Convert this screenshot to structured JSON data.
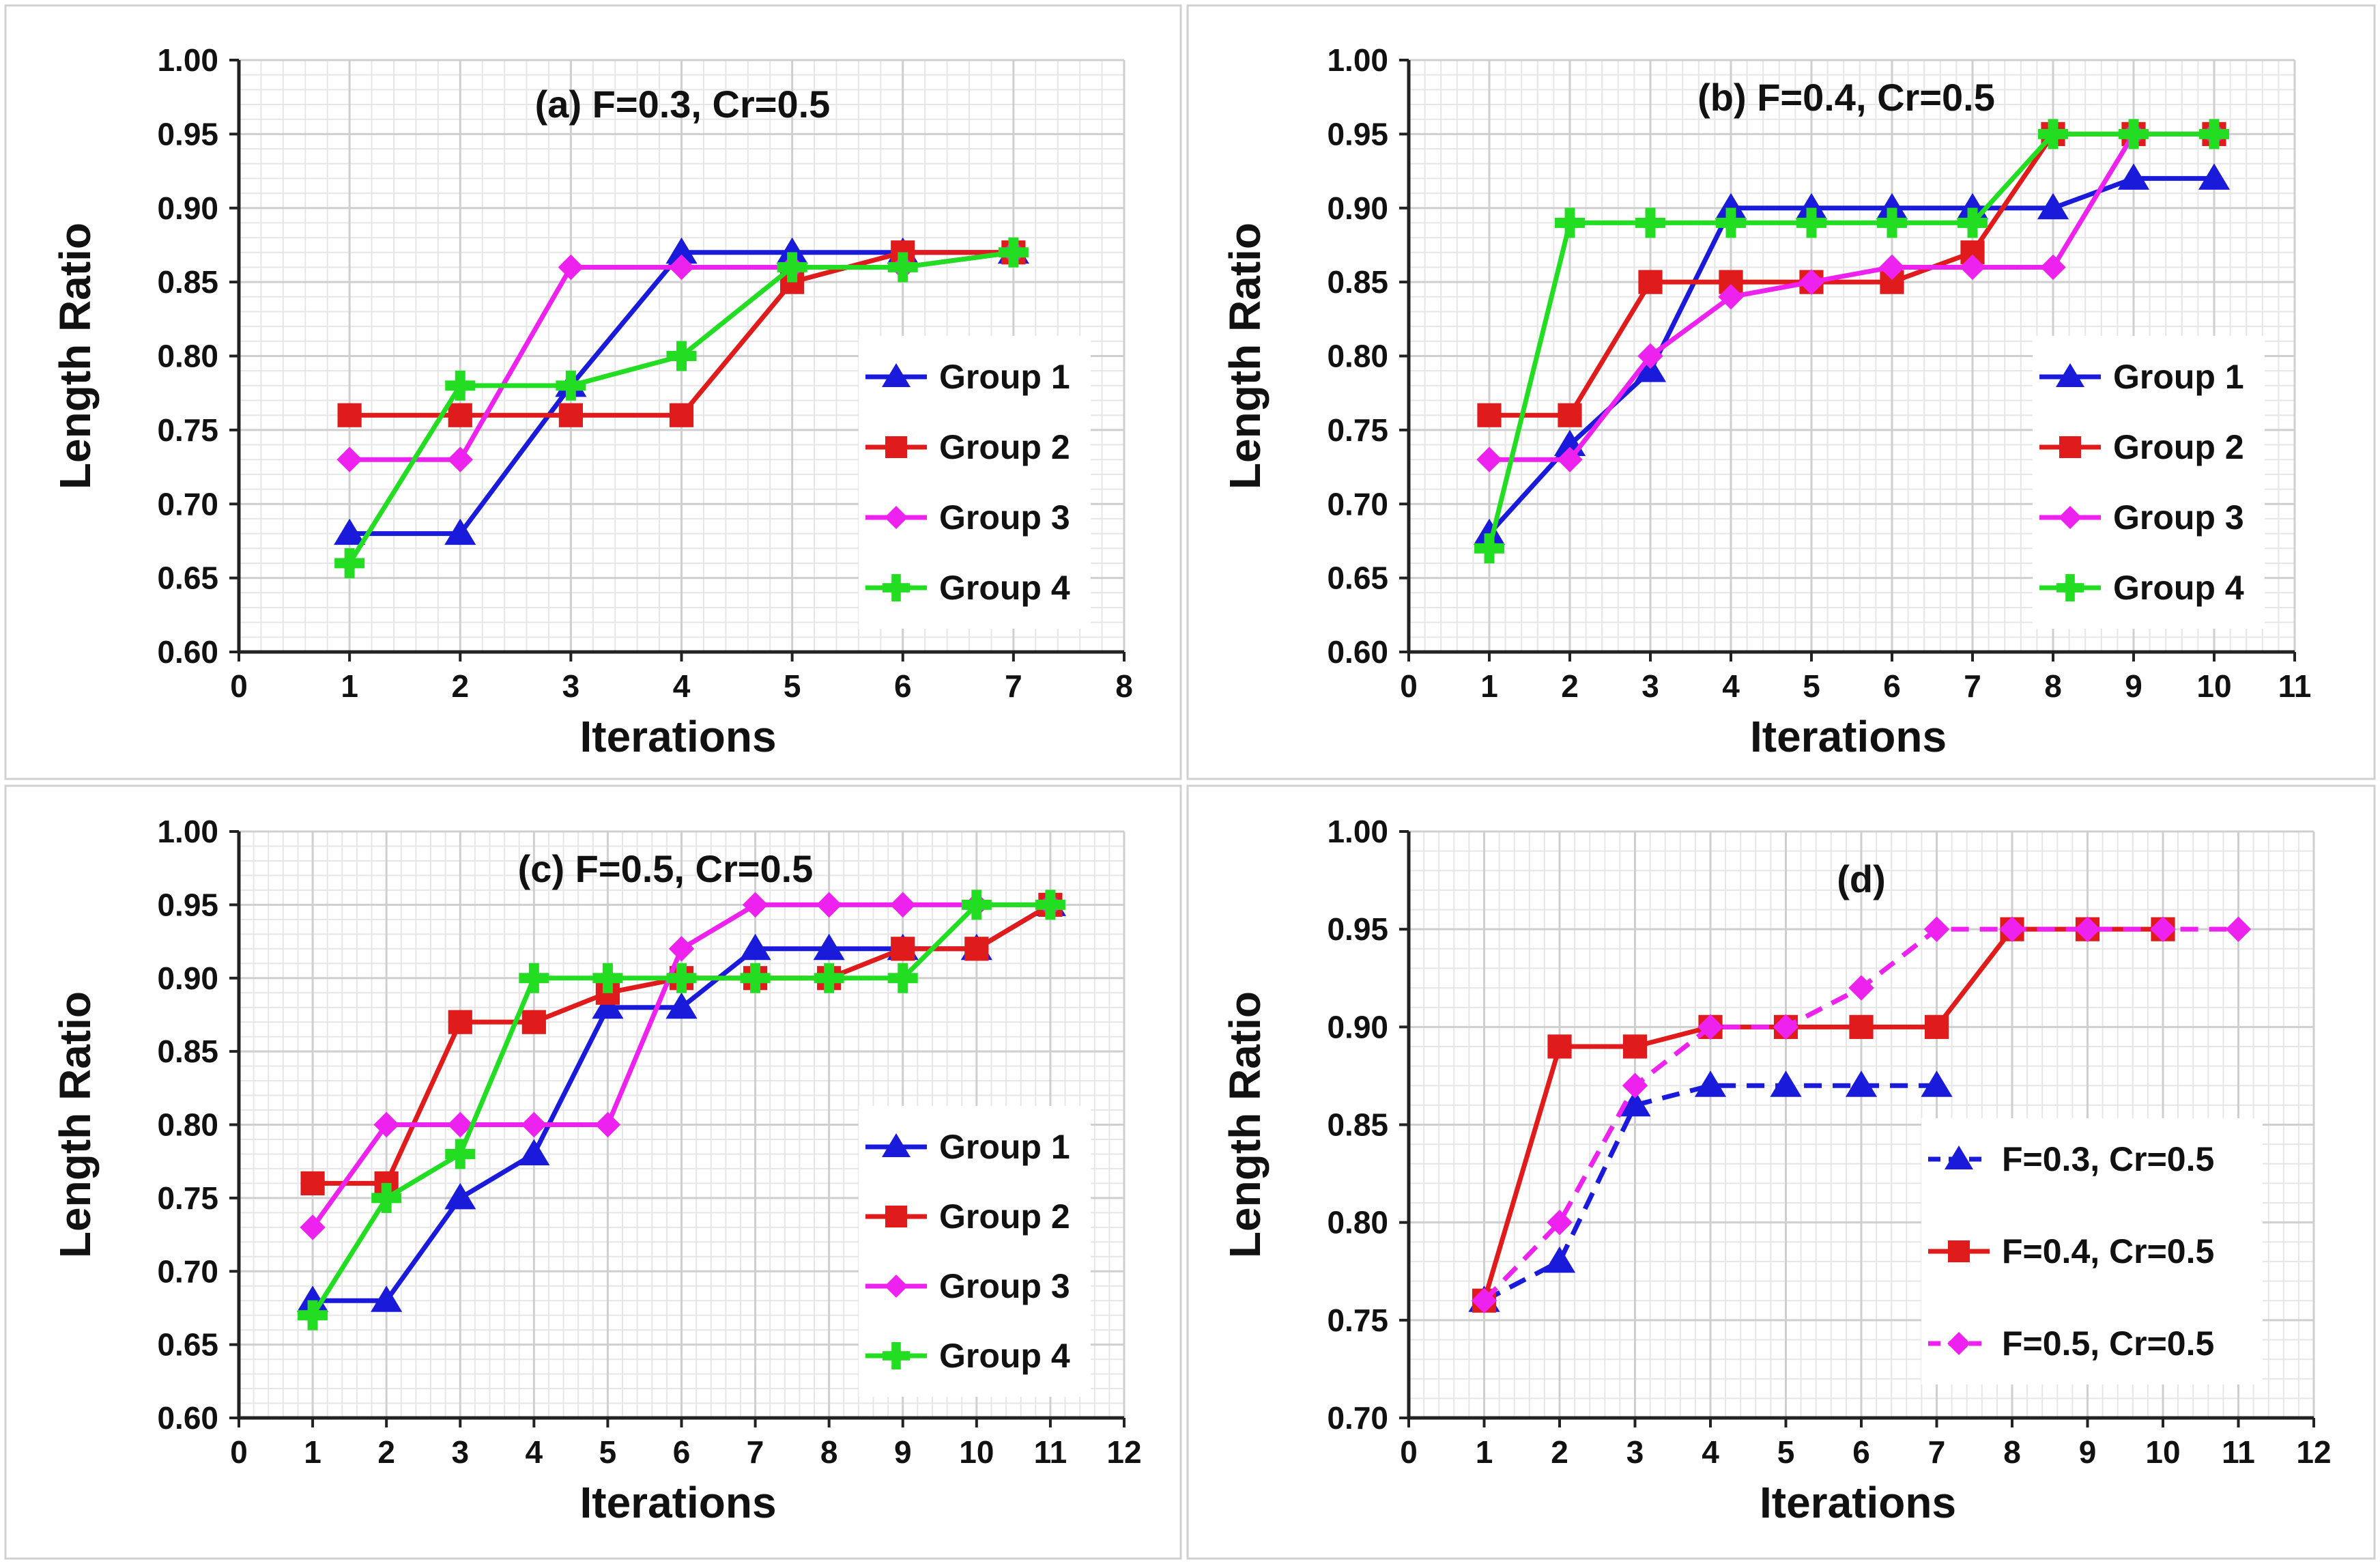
{
  "chart_data": [
    {
      "type": "line",
      "title": "(a) F=0.3, Cr=0.5",
      "xlabel": "Iterations",
      "ylabel": "Length Ratio",
      "xlim": [
        0,
        8
      ],
      "ylim": [
        0.6,
        1.0
      ],
      "xticks": [
        "0",
        "1",
        "2",
        "3",
        "4",
        "5",
        "6",
        "7",
        "8"
      ],
      "yticks": [
        "0.60",
        "0.65",
        "0.70",
        "0.75",
        "0.80",
        "0.85",
        "0.90",
        "0.95",
        "1.00"
      ],
      "legend_position": "center-right",
      "series": [
        {
          "name": "Group 1",
          "color": "#1a1adb",
          "marker": "triangle",
          "dash": "solid",
          "x": [
            1,
            2,
            3,
            4,
            5,
            6,
            7
          ],
          "values": [
            0.68,
            0.68,
            0.78,
            0.87,
            0.87,
            0.87,
            0.87
          ]
        },
        {
          "name": "Group 2",
          "color": "#e01b1b",
          "marker": "square",
          "dash": "solid",
          "x": [
            1,
            2,
            3,
            4,
            5,
            6,
            7
          ],
          "values": [
            0.76,
            0.76,
            0.76,
            0.76,
            0.85,
            0.87,
            0.87
          ]
        },
        {
          "name": "Group 3",
          "color": "#ee22ee",
          "marker": "diamond",
          "dash": "solid",
          "x": [
            1,
            2,
            3,
            4,
            5,
            6,
            7
          ],
          "values": [
            0.73,
            0.73,
            0.86,
            0.86,
            0.86,
            0.86,
            0.87
          ]
        },
        {
          "name": "Group 4",
          "color": "#22dd22",
          "marker": "plus",
          "dash": "solid",
          "x": [
            1,
            2,
            3,
            4,
            5,
            6,
            7
          ],
          "values": [
            0.66,
            0.78,
            0.78,
            0.8,
            0.86,
            0.86,
            0.87
          ]
        }
      ]
    },
    {
      "type": "line",
      "title": "(b) F=0.4, Cr=0.5",
      "xlabel": "Iterations",
      "ylabel": "Length Ratio",
      "xlim": [
        0,
        11
      ],
      "ylim": [
        0.6,
        1.0
      ],
      "xticks": [
        "0",
        "1",
        "2",
        "3",
        "4",
        "5",
        "6",
        "7",
        "8",
        "9",
        "10",
        "11"
      ],
      "yticks": [
        "0.60",
        "0.65",
        "0.70",
        "0.75",
        "0.80",
        "0.85",
        "0.90",
        "0.95",
        "1.00"
      ],
      "legend_position": "center-right",
      "series": [
        {
          "name": "Group 1",
          "color": "#1a1adb",
          "marker": "triangle",
          "dash": "solid",
          "x": [
            1,
            2,
            3,
            4,
            5,
            6,
            7,
            8,
            9,
            10
          ],
          "values": [
            0.68,
            0.74,
            0.79,
            0.9,
            0.9,
            0.9,
            0.9,
            0.9,
            0.92,
            0.92
          ]
        },
        {
          "name": "Group 2",
          "color": "#e01b1b",
          "marker": "square",
          "dash": "solid",
          "x": [
            1,
            2,
            3,
            4,
            5,
            6,
            7,
            8,
            9,
            10
          ],
          "values": [
            0.76,
            0.76,
            0.85,
            0.85,
            0.85,
            0.85,
            0.87,
            0.95,
            0.95,
            0.95
          ]
        },
        {
          "name": "Group 3",
          "color": "#ee22ee",
          "marker": "diamond",
          "dash": "solid",
          "x": [
            1,
            2,
            3,
            4,
            5,
            6,
            7,
            8,
            9,
            10
          ],
          "values": [
            0.73,
            0.73,
            0.8,
            0.84,
            0.85,
            0.86,
            0.86,
            0.86,
            0.95,
            0.95
          ]
        },
        {
          "name": "Group 4",
          "color": "#22dd22",
          "marker": "plus",
          "dash": "solid",
          "x": [
            1,
            2,
            3,
            4,
            5,
            6,
            7,
            8,
            9,
            10
          ],
          "values": [
            0.67,
            0.89,
            0.89,
            0.89,
            0.89,
            0.89,
            0.89,
            0.95,
            0.95,
            0.95
          ]
        }
      ]
    },
    {
      "type": "line",
      "title": "(c) F=0.5, Cr=0.5",
      "xlabel": "Iterations",
      "ylabel": "Length Ratio",
      "xlim": [
        0,
        12
      ],
      "ylim": [
        0.6,
        1.0
      ],
      "xticks": [
        "0",
        "1",
        "2",
        "3",
        "4",
        "5",
        "6",
        "7",
        "8",
        "9",
        "10",
        "11",
        "12"
      ],
      "yticks": [
        "0.60",
        "0.65",
        "0.70",
        "0.75",
        "0.80",
        "0.85",
        "0.90",
        "0.95",
        "1.00"
      ],
      "legend_position": "center-right",
      "series": [
        {
          "name": "Group 1",
          "color": "#1a1adb",
          "marker": "triangle",
          "dash": "solid",
          "x": [
            1,
            2,
            3,
            4,
            5,
            6,
            7,
            8,
            9,
            10,
            11
          ],
          "values": [
            0.68,
            0.68,
            0.75,
            0.78,
            0.88,
            0.88,
            0.92,
            0.92,
            0.92,
            0.92,
            0.95
          ]
        },
        {
          "name": "Group 2",
          "color": "#e01b1b",
          "marker": "square",
          "dash": "solid",
          "x": [
            1,
            2,
            3,
            4,
            5,
            6,
            7,
            8,
            9,
            10,
            11
          ],
          "values": [
            0.76,
            0.76,
            0.87,
            0.87,
            0.89,
            0.9,
            0.9,
            0.9,
            0.92,
            0.92,
            0.95
          ]
        },
        {
          "name": "Group 3",
          "color": "#ee22ee",
          "marker": "diamond",
          "dash": "solid",
          "x": [
            1,
            2,
            3,
            4,
            5,
            6,
            7,
            8,
            9,
            10,
            11
          ],
          "values": [
            0.73,
            0.8,
            0.8,
            0.8,
            0.8,
            0.92,
            0.95,
            0.95,
            0.95,
            0.95,
            0.95
          ]
        },
        {
          "name": "Group 4",
          "color": "#22dd22",
          "marker": "plus",
          "dash": "solid",
          "x": [
            1,
            2,
            3,
            4,
            5,
            6,
            7,
            8,
            9,
            10,
            11
          ],
          "values": [
            0.67,
            0.75,
            0.78,
            0.9,
            0.9,
            0.9,
            0.9,
            0.9,
            0.9,
            0.95,
            0.95
          ]
        }
      ]
    },
    {
      "type": "line",
      "title": "(d)",
      "xlabel": "Iterations",
      "ylabel": "Length Ratio",
      "xlim": [
        0,
        12
      ],
      "ylim": [
        0.7,
        1.0
      ],
      "xticks": [
        "0",
        "1",
        "2",
        "3",
        "4",
        "5",
        "6",
        "7",
        "8",
        "9",
        "10",
        "11",
        "12"
      ],
      "yticks": [
        "0.70",
        "0.75",
        "0.80",
        "0.85",
        "0.90",
        "0.95",
        "1.00"
      ],
      "legend_position": "bottom-right",
      "series": [
        {
          "name": "F=0.3, Cr=0.5",
          "color": "#1a1adb",
          "marker": "triangle",
          "dash": "dashed",
          "x": [
            1,
            2,
            3,
            4,
            5,
            6,
            7
          ],
          "values": [
            0.76,
            0.78,
            0.86,
            0.87,
            0.87,
            0.87,
            0.87
          ]
        },
        {
          "name": "F=0.4, Cr=0.5",
          "color": "#e01b1b",
          "marker": "square",
          "dash": "solid",
          "x": [
            1,
            2,
            3,
            4,
            5,
            6,
            7,
            8,
            9,
            10
          ],
          "values": [
            0.76,
            0.89,
            0.89,
            0.9,
            0.9,
            0.9,
            0.9,
            0.95,
            0.95,
            0.95
          ]
        },
        {
          "name": "F=0.5, Cr=0.5",
          "color": "#ee22ee",
          "marker": "diamond",
          "dash": "dashed",
          "x": [
            1,
            2,
            3,
            4,
            5,
            6,
            7,
            8,
            9,
            10,
            11
          ],
          "values": [
            0.76,
            0.8,
            0.87,
            0.9,
            0.9,
            0.92,
            0.95,
            0.95,
            0.95,
            0.95,
            0.95
          ]
        }
      ]
    }
  ]
}
